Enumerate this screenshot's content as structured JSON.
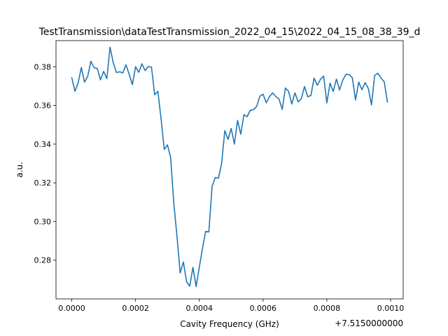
{
  "chart_data": {
    "type": "line",
    "title": "TestTransmission\\dataTestTransmission_2022_04_15\\2022_04_15_08_38_39_d",
    "xlabel": "Cavity Frequency (GHz)",
    "ylabel": "a.u.",
    "x_offset_label": "+7.5150000000",
    "xlim": [
      -4.95e-05,
      0.0010395
    ],
    "ylim": [
      0.26,
      0.3935
    ],
    "x_ticks": [
      0.0,
      0.0002,
      0.0004,
      0.0006,
      0.0008,
      0.001
    ],
    "x_tick_labels": [
      "0.0000",
      "0.0002",
      "0.0004",
      "0.0006",
      "0.0008",
      "0.0010"
    ],
    "y_ticks": [
      0.28,
      0.3,
      0.32,
      0.34,
      0.36,
      0.38
    ],
    "y_tick_labels": [
      "0.28",
      "0.30",
      "0.32",
      "0.34",
      "0.36",
      "0.38"
    ],
    "grid": false,
    "line_color": "#1f77b4",
    "series": [
      {
        "x": [
          0.0,
          1e-05,
          2e-05,
          3e-05,
          4e-05,
          5e-05,
          6e-05,
          7e-05,
          8e-05,
          9e-05,
          0.0001,
          0.00011,
          0.00012,
          0.00013,
          0.00014,
          0.00015,
          0.00016,
          0.00017,
          0.00018,
          0.00019,
          0.0002,
          0.00021,
          0.00022,
          0.00023,
          0.00024,
          0.00025,
          0.00026,
          0.00027,
          0.00028,
          0.00029,
          0.0003,
          0.00031,
          0.00032,
          0.00033,
          0.00034,
          0.00035,
          0.00036,
          0.00037,
          0.00038,
          0.00039,
          0.0004,
          0.00041,
          0.00042,
          0.00043,
          0.00044,
          0.00045,
          0.00046,
          0.00047,
          0.00048,
          0.00049,
          0.0005,
          0.00051,
          0.00052,
          0.00053,
          0.00054,
          0.00055,
          0.00056,
          0.00057,
          0.00058,
          0.00059,
          0.0006,
          0.00061,
          0.00062,
          0.00063,
          0.00064,
          0.00065,
          0.00066,
          0.00067,
          0.00068,
          0.00069,
          0.0007,
          0.00071,
          0.00072,
          0.00073,
          0.00074,
          0.00075,
          0.00076,
          0.00077,
          0.00078,
          0.00079,
          0.0008,
          0.00081,
          0.00082,
          0.00083,
          0.00084,
          0.00085,
          0.00086,
          0.00087,
          0.00088,
          0.00089,
          0.0009,
          0.00091,
          0.00092,
          0.00093,
          0.00094,
          0.00095,
          0.00096,
          0.00097,
          0.00098,
          0.00099
        ],
        "y": [
          0.3743,
          0.3673,
          0.3717,
          0.3796,
          0.372,
          0.3751,
          0.3828,
          0.3795,
          0.3791,
          0.3732,
          0.3776,
          0.3738,
          0.3901,
          0.3821,
          0.377,
          0.3774,
          0.3768,
          0.381,
          0.3761,
          0.3707,
          0.38,
          0.3771,
          0.3815,
          0.378,
          0.3801,
          0.3798,
          0.3655,
          0.3673,
          0.3532,
          0.3373,
          0.3396,
          0.3332,
          0.3095,
          0.2923,
          0.2734,
          0.2791,
          0.2689,
          0.2666,
          0.2763,
          0.2664,
          0.2764,
          0.2862,
          0.2949,
          0.2946,
          0.3181,
          0.3227,
          0.3224,
          0.33,
          0.347,
          0.3424,
          0.3481,
          0.34,
          0.3523,
          0.3451,
          0.3552,
          0.3542,
          0.3575,
          0.3578,
          0.3595,
          0.3648,
          0.3658,
          0.3614,
          0.3645,
          0.3665,
          0.3646,
          0.3633,
          0.358,
          0.369,
          0.3673,
          0.3607,
          0.3665,
          0.3618,
          0.3635,
          0.3698,
          0.3645,
          0.3651,
          0.3741,
          0.3704,
          0.3735,
          0.3752,
          0.3613,
          0.3715,
          0.3672,
          0.3736,
          0.368,
          0.3731,
          0.3761,
          0.3759,
          0.3743,
          0.3628,
          0.3721,
          0.3681,
          0.3718,
          0.3688,
          0.3603,
          0.3755,
          0.3766,
          0.3741,
          0.3722,
          0.3617
        ]
      }
    ]
  }
}
